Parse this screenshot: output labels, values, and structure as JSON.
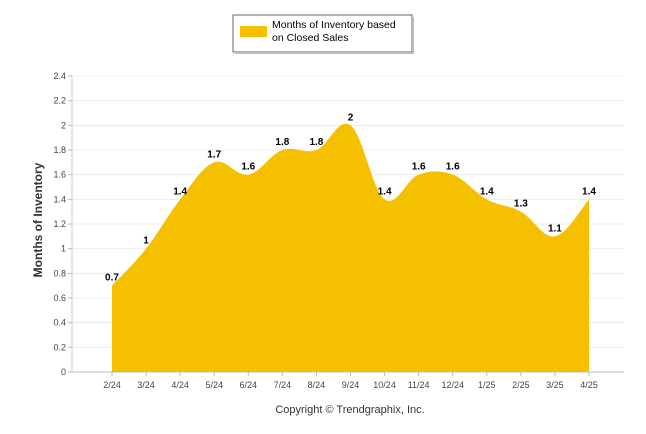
{
  "chart_data": {
    "type": "area",
    "title": "",
    "xlabel": "",
    "ylabel": "Months of Inventory",
    "categories": [
      "2/24",
      "3/24",
      "4/24",
      "5/24",
      "6/24",
      "7/24",
      "8/24",
      "9/24",
      "10/24",
      "11/24",
      "12/24",
      "1/25",
      "2/25",
      "3/25",
      "4/25"
    ],
    "series": [
      {
        "name": "Months of Inventory based on Closed Sales",
        "values": [
          0.7,
          1,
          1.4,
          1.7,
          1.6,
          1.8,
          1.8,
          2,
          1.4,
          1.6,
          1.6,
          1.4,
          1.3,
          1.1,
          1.4
        ],
        "labels": [
          "0.7",
          "1",
          "1.4",
          "1.7",
          "1.6",
          "1.8",
          "1.8",
          "2",
          "1.4",
          "1.6",
          "1.6",
          "1.4",
          "1.3",
          "1.1",
          "1.4"
        ],
        "color": "#F5C000"
      }
    ],
    "ylim": [
      0,
      2.4
    ],
    "yticks": [
      "0",
      "0.2",
      "0.4",
      "0.6",
      "0.8",
      "1",
      "1.2",
      "1.4",
      "1.6",
      "1.8",
      "2",
      "2.2",
      "2.4"
    ],
    "grid": true,
    "legend": {
      "position": "top-center",
      "line1": "Months of Inventory based",
      "line2": "on Closed Sales"
    },
    "footer": "Copyright © Trendgraphix, Inc."
  }
}
